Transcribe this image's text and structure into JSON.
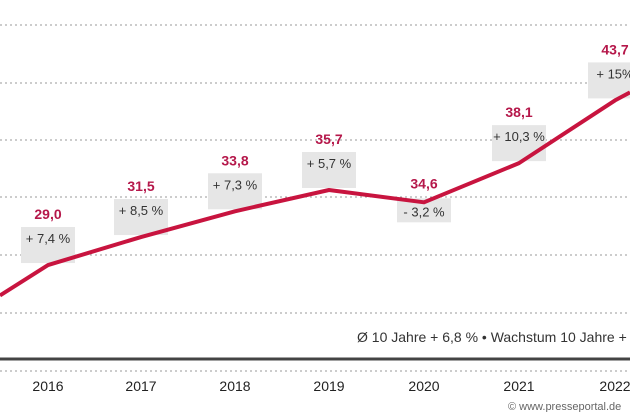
{
  "chart_data": {
    "type": "line",
    "categories": [
      "2016",
      "2017",
      "2018",
      "2019",
      "2020",
      "2021",
      "2022"
    ],
    "values": [
      29.0,
      31.5,
      33.8,
      35.7,
      34.6,
      38.1,
      43.7
    ],
    "value_labels": [
      "29,0",
      "31,5",
      "33,8",
      "35,7",
      "34,6",
      "38,1",
      "43,7"
    ],
    "change_labels": [
      "+ 7,4 %",
      "+ 8,5 %",
      "+ 7,3 %",
      "+ 5,7 %",
      "- 3,2 %",
      "+ 10,3 %",
      "+ 15%"
    ],
    "footnote": "Ø 10 Jahre + 6,8 % • Wachstum 10 Jahre +",
    "watermark": "© www.presseportal.de",
    "grid": true,
    "colors": {
      "line": "#c8143f",
      "value_text": "#b5174a",
      "label_box": "#e6e6e6",
      "axis": "#444444"
    }
  }
}
